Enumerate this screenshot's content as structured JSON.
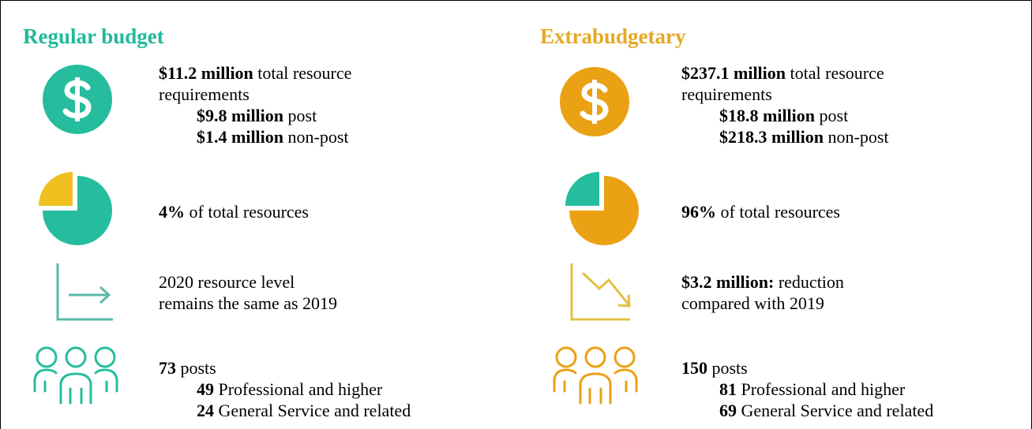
{
  "columns": [
    {
      "title": "Regular budget",
      "items": [
        {
          "lines": [
            {
              "bold": "$11.2 million",
              "text": "total resource"
            },
            {
              "text": "requirements"
            }
          ],
          "sub": [
            {
              "bold": "$9.8 million",
              "text": "post"
            },
            {
              "bold": "$1.4 million",
              "text": "non-post"
            }
          ]
        },
        {
          "lines": [
            {
              "bold": "4%",
              "text": "of total resources"
            }
          ],
          "sub": []
        },
        {
          "lines": [
            {
              "text": "2020 resource level"
            },
            {
              "text": "remains the same as 2019"
            }
          ],
          "sub": []
        },
        {
          "lines": [
            {
              "bold": "73",
              "text": "posts"
            }
          ],
          "sub": [
            {
              "bold": "49",
              "text": "Professional and higher"
            },
            {
              "bold": "24",
              "text": "General Service and related"
            }
          ]
        }
      ]
    },
    {
      "title": "Extrabudgetary",
      "items": [
        {
          "lines": [
            {
              "bold": "$237.1 million",
              "text": "total resource"
            },
            {
              "text": "requirements"
            }
          ],
          "sub": [
            {
              "bold": "$18.8 million",
              "text": "post"
            },
            {
              "bold": "$218.3 million",
              "text": "non-post"
            }
          ]
        },
        {
          "lines": [
            {
              "bold": "96%",
              "text": "of total resources"
            }
          ],
          "sub": []
        },
        {
          "lines": [
            {
              "bold": "$3.2 million:",
              "text": "reduction"
            },
            {
              "text": "compared with 2019"
            }
          ],
          "sub": []
        },
        {
          "lines": [
            {
              "bold": "150",
              "text": "posts"
            }
          ],
          "sub": [
            {
              "bold": "81",
              "text": "Professional and higher"
            },
            {
              "bold": "69",
              "text": "General Service and related"
            }
          ]
        }
      ]
    }
  ]
}
